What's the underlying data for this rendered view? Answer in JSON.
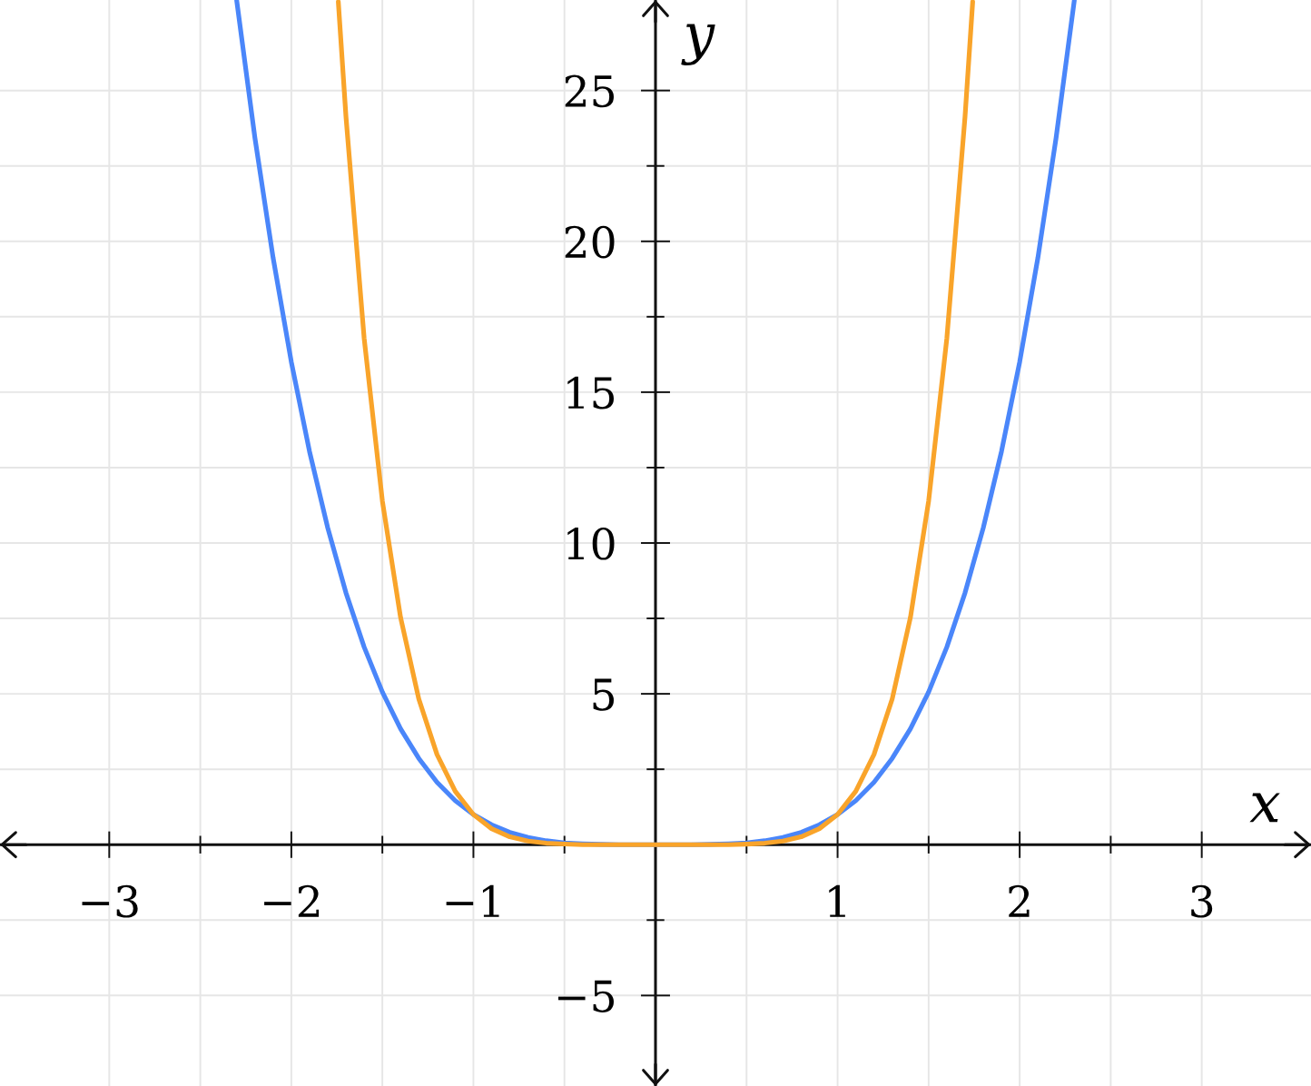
{
  "chart_data": {
    "type": "line",
    "xlabel": "x",
    "ylabel": "y",
    "xlim": [
      -3.6,
      3.6
    ],
    "ylim": [
      -8,
      28
    ],
    "xticks": [
      {
        "value": -3,
        "label": "−3"
      },
      {
        "value": -2.5,
        "label": null
      },
      {
        "value": -2,
        "label": "−2"
      },
      {
        "value": -1.5,
        "label": null
      },
      {
        "value": -1,
        "label": "−1"
      },
      {
        "value": -0.5,
        "label": null
      },
      {
        "value": 0.5,
        "label": null
      },
      1,
      {
        "value": 1.5,
        "label": null
      },
      2,
      {
        "value": 2.5,
        "label": null
      },
      3
    ],
    "yticks": [
      {
        "value": -5,
        "label": "−5"
      },
      {
        "value": -2.5,
        "label": null
      },
      {
        "value": 2.5,
        "label": null
      },
      5,
      {
        "value": 7.5,
        "label": null
      },
      10,
      {
        "value": 12.5,
        "label": null
      },
      15,
      {
        "value": 17.5,
        "label": null
      },
      20,
      {
        "value": 22.5,
        "label": null
      },
      25
    ],
    "grid": true,
    "series": [
      {
        "color": "#4a86fa",
        "x": [
          -2.3,
          -2.2,
          -2.1,
          -2.0,
          -1.9,
          -1.8,
          -1.7,
          -1.6,
          -1.5,
          -1.4,
          -1.3,
          -1.2,
          -1.1,
          -1.0,
          -0.9,
          -0.8,
          -0.7,
          -0.6,
          -0.5,
          -0.4,
          -0.3,
          -0.2,
          -0.1,
          0,
          0.1,
          0.2,
          0.3,
          0.4,
          0.5,
          0.6,
          0.7,
          0.8,
          0.9,
          1.0,
          1.1,
          1.2,
          1.3,
          1.4,
          1.5,
          1.6,
          1.7,
          1.8,
          1.9,
          2.0,
          2.1,
          2.2,
          2.3
        ],
        "values": [
          27.98,
          23.43,
          19.45,
          16,
          13.03,
          10.5,
          8.35,
          6.55,
          5.06,
          3.84,
          2.86,
          2.07,
          1.46,
          1,
          0.66,
          0.41,
          0.24,
          0.13,
          0.06,
          0.03,
          0.01,
          0,
          0,
          0,
          0,
          0,
          0.01,
          0.03,
          0.06,
          0.13,
          0.24,
          0.41,
          0.66,
          1,
          1.46,
          2.07,
          2.86,
          3.84,
          5.06,
          6.55,
          8.35,
          10.5,
          13.03,
          16,
          19.45,
          23.43,
          27.98
        ]
      },
      {
        "color": "#f9a42a",
        "x": [
          -1.742,
          -1.7,
          -1.6,
          -1.5,
          -1.4,
          -1.3,
          -1.2,
          -1.1,
          -1.0,
          -0.9,
          -0.8,
          -0.7,
          -0.6,
          -0.5,
          -0.4,
          -0.3,
          -0.2,
          -0.1,
          0,
          0.1,
          0.2,
          0.3,
          0.4,
          0.5,
          0.6,
          0.7,
          0.8,
          0.9,
          1.0,
          1.1,
          1.2,
          1.3,
          1.4,
          1.5,
          1.6,
          1.7,
          1.742
        ],
        "values": [
          27.94,
          24.14,
          16.78,
          11.39,
          7.53,
          4.83,
          2.99,
          1.77,
          1,
          0.53,
          0.26,
          0.12,
          0.05,
          0.02,
          0,
          0,
          0,
          0,
          0,
          0,
          0,
          0,
          0,
          0.02,
          0.05,
          0.12,
          0.26,
          0.53,
          1,
          1.77,
          2.99,
          4.83,
          7.53,
          11.39,
          16.78,
          24.14,
          27.94
        ]
      }
    ]
  }
}
